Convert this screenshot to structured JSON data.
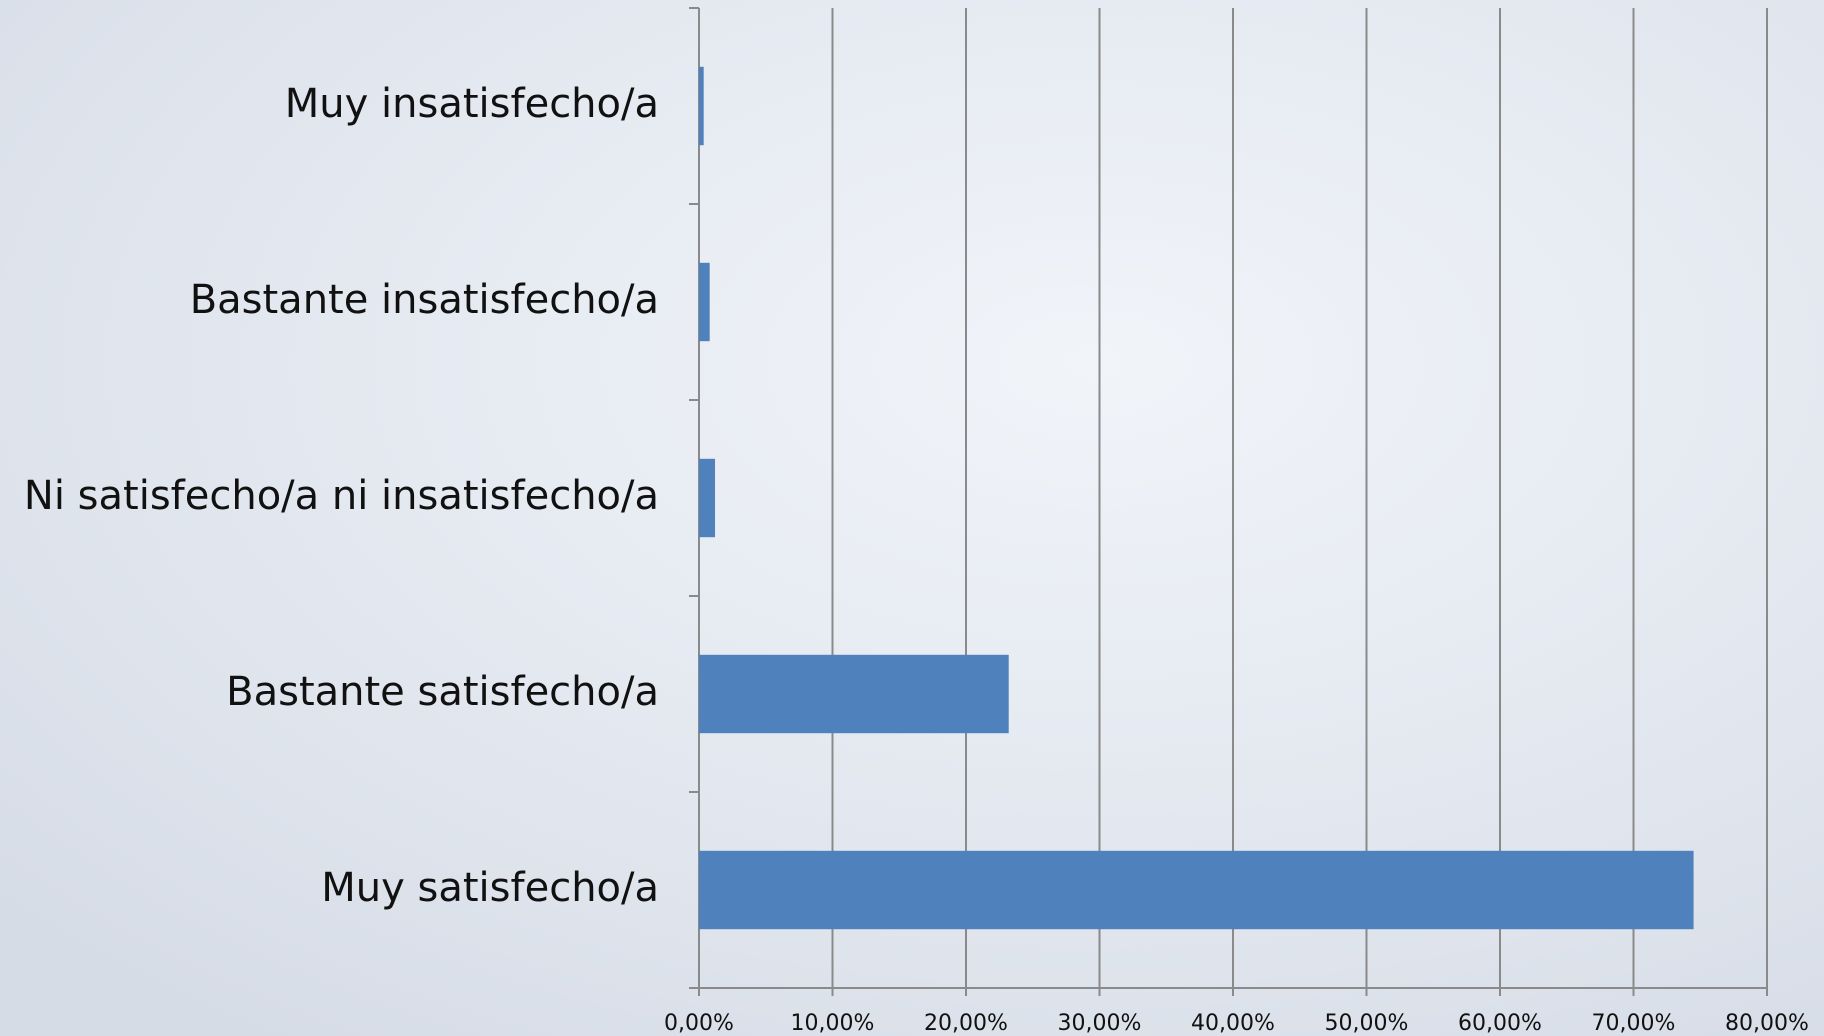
{
  "chart_data": {
    "type": "bar",
    "orientation": "horizontal",
    "categories": [
      "Muy insatisfecho/a",
      "Bastante insatisfecho/a",
      "Ni satisfecho/a ni insatisfecho/a",
      "Bastante satisfecho/a",
      "Muy satisfecho/a"
    ],
    "values": [
      0.35,
      0.8,
      1.2,
      23.2,
      74.5
    ],
    "color": "#4f81bd",
    "xlim": [
      0,
      80
    ],
    "xticks": [
      {
        "value": 0,
        "label": "0,00%"
      },
      {
        "value": 10,
        "label": "10,00%"
      },
      {
        "value": 20,
        "label": "20,00%"
      },
      {
        "value": 30,
        "label": "30,00%"
      },
      {
        "value": 40,
        "label": "40,00%"
      },
      {
        "value": 50,
        "label": "50,00%"
      },
      {
        "value": 60,
        "label": "60,00%"
      },
      {
        "value": 70,
        "label": "70,00%"
      },
      {
        "value": 80,
        "label": "80,00%"
      }
    ],
    "grid": true
  }
}
